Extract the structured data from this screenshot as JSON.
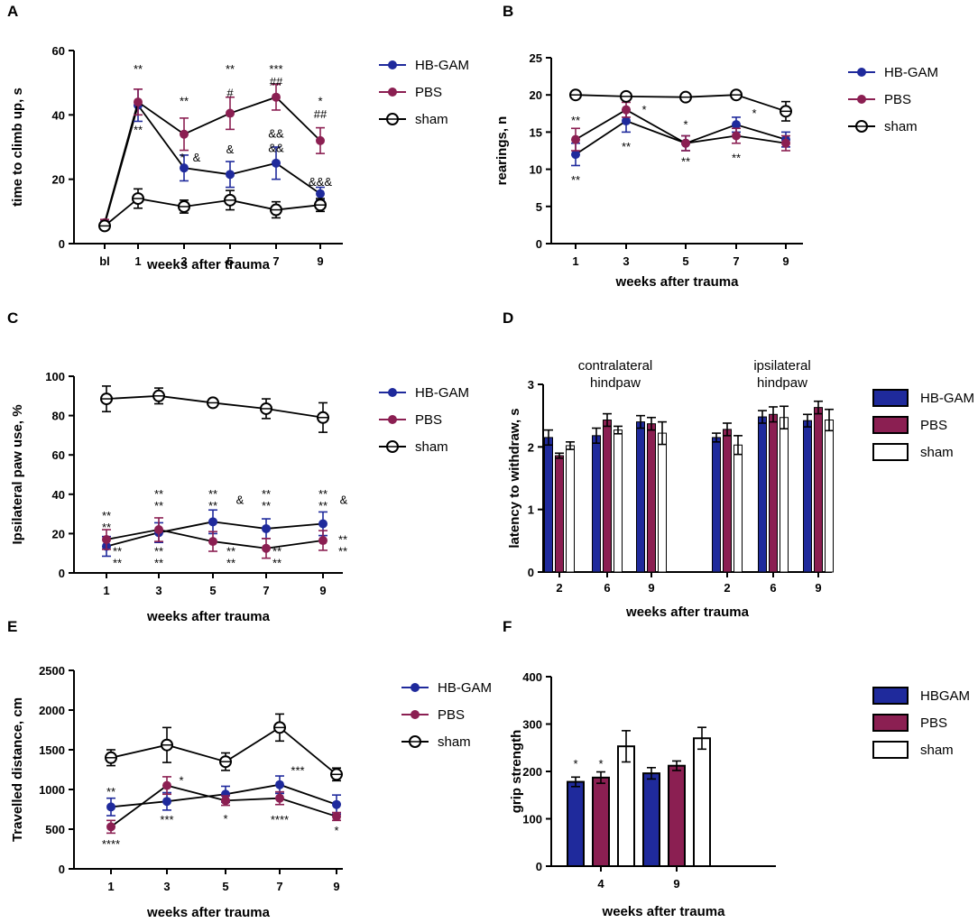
{
  "colors": {
    "hbgam": "#1f2a9c",
    "pbs": "#8b1f52",
    "sham": "#ffffff",
    "axis": "#000000"
  },
  "chart_data": [
    {
      "id": "A",
      "panel_label": "A",
      "type": "line",
      "ylabel": "time to climb up, s",
      "xlabel": "weeks after trauma",
      "ylim": [
        0,
        60
      ],
      "yticks": [
        0,
        20,
        40,
        60
      ],
      "categories": [
        "bl",
        "1",
        "3",
        "5",
        "7",
        "9"
      ],
      "series": [
        {
          "name": "HB-GAM",
          "color": "#1f2a9c",
          "marker": "filled",
          "values": [
            6,
            43,
            23.5,
            21.5,
            25,
            15.5
          ],
          "errors": [
            1,
            5,
            4,
            4,
            5,
            2
          ]
        },
        {
          "name": "PBS",
          "color": "#8b1f52",
          "marker": "filled",
          "values": [
            6.5,
            44,
            34,
            40.5,
            45.5,
            32
          ],
          "errors": [
            1,
            4,
            5,
            5,
            4,
            4
          ]
        },
        {
          "name": "sham",
          "color": "#000000",
          "marker": "open",
          "values": [
            5.5,
            14,
            11.5,
            13.5,
            10.5,
            12
          ],
          "errors": [
            1,
            3,
            2,
            3,
            2.5,
            2
          ]
        }
      ],
      "annotations": [
        {
          "text": "**",
          "x": "1",
          "y": 53
        },
        {
          "text": "**",
          "x": "1",
          "y": 34
        },
        {
          "text": "**",
          "x": "3",
          "y": 43
        },
        {
          "text": "*",
          "x": "3",
          "y": 25.5,
          "dx": -2
        },
        {
          "text": "&",
          "x": "3",
          "y": 25.5,
          "dx": 14
        },
        {
          "text": "**",
          "x": "5",
          "y": 53
        },
        {
          "text": "#",
          "x": "5",
          "y": 45.5
        },
        {
          "text": "&",
          "x": "5",
          "y": 28
        },
        {
          "text": "***",
          "x": "7",
          "y": 53
        },
        {
          "text": "##",
          "x": "7",
          "y": 49
        },
        {
          "text": "&&",
          "x": "7",
          "y": 33
        },
        {
          "text": "&&",
          "x": "7",
          "y": 28.5
        },
        {
          "text": "*",
          "x": "9",
          "y": 43
        },
        {
          "text": "##",
          "x": "9",
          "y": 39
        },
        {
          "text": "&&&",
          "x": "9",
          "y": 18
        }
      ]
    },
    {
      "id": "B",
      "panel_label": "B",
      "type": "line",
      "ylabel": "rearings, n",
      "xlabel": "weeks after trauma",
      "ylim": [
        0,
        25
      ],
      "yticks": [
        0,
        5,
        10,
        15,
        20,
        25
      ],
      "categories": [
        "1",
        "3",
        "5",
        "7",
        "9"
      ],
      "series": [
        {
          "name": "HB-GAM",
          "color": "#1f2a9c",
          "marker": "filled",
          "values": [
            12,
            16.5,
            13.5,
            16,
            14
          ],
          "errors": [
            1.5,
            1.5,
            1,
            1,
            1
          ]
        },
        {
          "name": "PBS",
          "color": "#8b1f52",
          "marker": "filled",
          "values": [
            14,
            18,
            13.5,
            14.5,
            13.5
          ],
          "errors": [
            1.5,
            1,
            1,
            1,
            1
          ]
        },
        {
          "name": "sham",
          "color": "#000000",
          "marker": "open",
          "values": [
            20,
            19.8,
            19.7,
            20,
            17.8
          ],
          "errors": [
            0.3,
            0.3,
            0.3,
            0.3,
            1.3
          ]
        }
      ],
      "annotations": [
        {
          "text": "**",
          "x": "1",
          "y": 16
        },
        {
          "text": "**",
          "x": "1",
          "y": 8
        },
        {
          "text": "*",
          "x": "3",
          "y": 17.5,
          "dx": 20
        },
        {
          "text": "**",
          "x": "3",
          "y": 12.5
        },
        {
          "text": "*",
          "x": "5",
          "y": 15.5
        },
        {
          "text": "**",
          "x": "5",
          "y": 10.5
        },
        {
          "text": "*",
          "x": "7",
          "y": 17,
          "dx": 20
        },
        {
          "text": "**",
          "x": "7",
          "y": 11
        }
      ]
    },
    {
      "id": "C",
      "panel_label": "C",
      "type": "line",
      "ylabel": "Ipsilateral paw use, %",
      "xlabel": "weeks after trauma",
      "ylim": [
        0,
        100
      ],
      "yticks": [
        0,
        20,
        40,
        60,
        80,
        100
      ],
      "categories": [
        "1",
        "3",
        "5",
        "7",
        "9"
      ],
      "series": [
        {
          "name": "HB-GAM",
          "color": "#1f2a9c",
          "marker": "filled",
          "values": [
            13.5,
            20.5,
            26,
            22.5,
            25
          ],
          "errors": [
            5,
            5,
            6,
            5,
            6
          ]
        },
        {
          "name": "PBS",
          "color": "#8b1f52",
          "marker": "filled",
          "values": [
            17,
            22,
            16,
            12.5,
            16.5
          ],
          "errors": [
            5,
            6,
            5,
            5,
            5
          ]
        },
        {
          "name": "sham",
          "color": "#000000",
          "marker": "open",
          "values": [
            88.5,
            90,
            86.5,
            83.5,
            79
          ],
          "errors": [
            6.5,
            4,
            2,
            5,
            7.5
          ]
        }
      ],
      "annotations": [
        {
          "text": "**",
          "x": "1",
          "y": 27
        },
        {
          "text": "**",
          "x": "1",
          "y": 21
        },
        {
          "text": "**",
          "x": "1",
          "y": 9,
          "dx": 12
        },
        {
          "text": "**",
          "x": "1",
          "y": 3,
          "dx": 12
        },
        {
          "text": "**",
          "x": "3",
          "y": 38
        },
        {
          "text": "**",
          "x": "3",
          "y": 32
        },
        {
          "text": "**",
          "x": "3",
          "y": 9
        },
        {
          "text": "**",
          "x": "3",
          "y": 3
        },
        {
          "text": "**",
          "x": "5",
          "y": 38
        },
        {
          "text": "**",
          "x": "5",
          "y": 32
        },
        {
          "text": "&",
          "x": "5",
          "y": 35,
          "dx": 30
        },
        {
          "text": "**",
          "x": "5",
          "y": 9,
          "dx": 20
        },
        {
          "text": "**",
          "x": "5",
          "y": 3,
          "dx": 20
        },
        {
          "text": "**",
          "x": "7",
          "y": 38
        },
        {
          "text": "**",
          "x": "7",
          "y": 32
        },
        {
          "text": "**",
          "x": "7",
          "y": 9,
          "dx": 12
        },
        {
          "text": "**",
          "x": "7",
          "y": 3,
          "dx": 12
        },
        {
          "text": "**",
          "x": "9",
          "y": 38
        },
        {
          "text": "**",
          "x": "9",
          "y": 32
        },
        {
          "text": "&",
          "x": "9",
          "y": 35,
          "dx": 23
        },
        {
          "text": "**",
          "x": "9",
          "y": 15,
          "dx": 22
        },
        {
          "text": "**",
          "x": "9",
          "y": 9,
          "dx": 22
        }
      ]
    },
    {
      "id": "D",
      "panel_label": "D",
      "type": "bar",
      "ylabel": "latency to withdraw, s",
      "xlabel": "weeks after trauma",
      "ylim": [
        0,
        3
      ],
      "yticks": [
        0,
        1,
        2,
        3
      ],
      "group_titles": [
        [
          "contralateral",
          "hindpaw"
        ],
        [
          "ipsilateral",
          "hindpaw"
        ]
      ],
      "categories": [
        "2",
        "6",
        "9",
        "2",
        "6",
        "9"
      ],
      "series": [
        {
          "name": "HB-GAM",
          "color": "#1f2a9c",
          "values": [
            2.15,
            2.18,
            2.4,
            2.15,
            2.48,
            2.42
          ],
          "errors": [
            0.12,
            0.12,
            0.1,
            0.07,
            0.1,
            0.1
          ]
        },
        {
          "name": "PBS",
          "color": "#8b1f52",
          "values": [
            1.86,
            2.43,
            2.37,
            2.28,
            2.52,
            2.63
          ],
          "errors": [
            0.04,
            0.1,
            0.1,
            0.1,
            0.12,
            0.1
          ]
        },
        {
          "name": "sham",
          "color": "#ffffff",
          "values": [
            2.02,
            2.27,
            2.22,
            2.03,
            2.47,
            2.43
          ],
          "errors": [
            0.06,
            0.06,
            0.18,
            0.15,
            0.18,
            0.17
          ]
        }
      ]
    },
    {
      "id": "E",
      "panel_label": "E",
      "type": "line",
      "ylabel": "Travelled distance, cm",
      "xlabel": "weeks after trauma",
      "ylim": [
        0,
        2500
      ],
      "yticks": [
        0,
        500,
        1000,
        1500,
        2000,
        2500
      ],
      "categories": [
        "1",
        "3",
        "5",
        "7",
        "9"
      ],
      "series": [
        {
          "name": "HB-GAM",
          "color": "#1f2a9c",
          "marker": "filled",
          "values": [
            780,
            850,
            940,
            1060,
            810
          ],
          "errors": [
            110,
            110,
            100,
            110,
            120
          ]
        },
        {
          "name": "PBS",
          "color": "#8b1f52",
          "marker": "filled",
          "values": [
            530,
            1050,
            860,
            890,
            660
          ],
          "errors": [
            80,
            110,
            60,
            80,
            50
          ]
        },
        {
          "name": "sham",
          "color": "#000000",
          "marker": "open",
          "values": [
            1400,
            1560,
            1350,
            1780,
            1190
          ],
          "errors": [
            100,
            220,
            110,
            170,
            80
          ]
        }
      ],
      "annotations": [
        {
          "text": "**",
          "x": "1",
          "y": 920
        },
        {
          "text": "****",
          "x": "1",
          "y": 260
        },
        {
          "text": "*",
          "x": "3",
          "y": 1060,
          "dx": 16
        },
        {
          "text": "***",
          "x": "3",
          "y": 570
        },
        {
          "text": "*",
          "x": "5",
          "y": 580
        },
        {
          "text": "***",
          "x": "7",
          "y": 1190,
          "dx": 20
        },
        {
          "text": "****",
          "x": "7",
          "y": 570
        },
        {
          "text": "*",
          "x": "9",
          "y": 430
        }
      ]
    },
    {
      "id": "F",
      "panel_label": "F",
      "type": "bar",
      "ylabel": "grip strength",
      "xlabel": "weeks after trauma",
      "ylim": [
        0,
        400
      ],
      "yticks": [
        0,
        100,
        200,
        300,
        400
      ],
      "categories": [
        "4",
        "9"
      ],
      "series": [
        {
          "name": "HBGAM",
          "color": "#1f2a9c",
          "values": [
            178,
            196
          ],
          "errors": [
            10,
            12
          ]
        },
        {
          "name": "PBS",
          "color": "#8b1f52",
          "values": [
            187,
            212
          ],
          "errors": [
            12,
            10
          ]
        },
        {
          "name": "sham",
          "color": "#ffffff",
          "values": [
            253,
            270
          ],
          "errors": [
            33,
            23
          ]
        }
      ],
      "annotations": [
        {
          "text": "*",
          "series": 0,
          "category": "4",
          "y": 208
        },
        {
          "text": "*",
          "series": 1,
          "category": "4",
          "y": 208
        }
      ]
    }
  ]
}
